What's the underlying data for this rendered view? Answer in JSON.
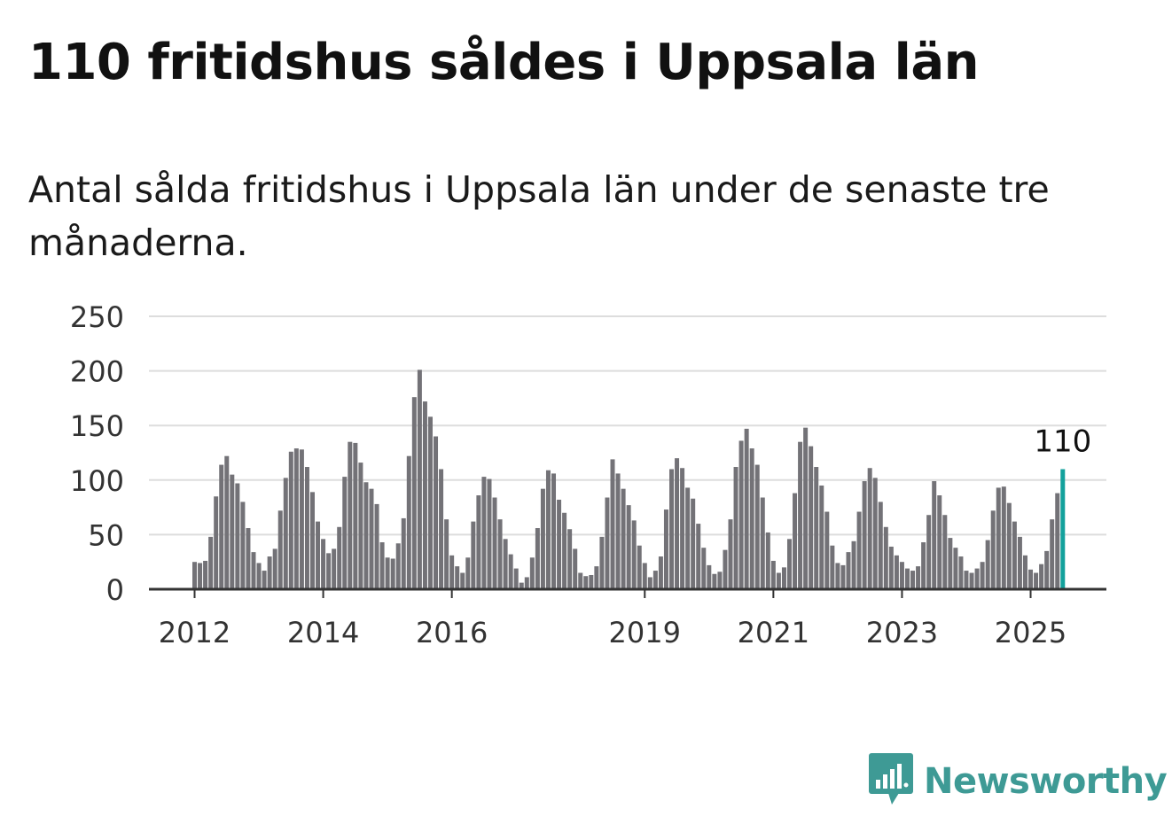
{
  "title": "110 fritidshus såldes i Uppsala län",
  "subtitle": "Antal sålda fritidshus i Uppsala län under de senaste tre månaderna.",
  "brand": {
    "name": "Newsworthy",
    "logo_icon": "bar-chart-speech-bubble-icon"
  },
  "colors": {
    "bar": "#737277",
    "highlight": "#13a19c",
    "grid": "#dddddd",
    "axis": "#333333",
    "brand": "#3e9a95"
  },
  "chart_data": {
    "type": "bar",
    "title": "110 fritidshus såldes i Uppsala län",
    "ylim": [
      0,
      250
    ],
    "yticks": [
      "0",
      "50",
      "100",
      "150",
      "200",
      "250"
    ],
    "xticks": [
      {
        "label": "2012",
        "index": 0
      },
      {
        "label": "2014",
        "index": 24
      },
      {
        "label": "2016",
        "index": 48
      },
      {
        "label": "2019",
        "index": 84
      },
      {
        "label": "2021",
        "index": 108
      },
      {
        "label": "2023",
        "index": 132
      },
      {
        "label": "2025",
        "index": 156
      }
    ],
    "highlight_label": "110",
    "grid": true,
    "values": [
      25,
      24,
      26,
      48,
      85,
      114,
      122,
      105,
      97,
      80,
      56,
      34,
      24,
      17,
      30,
      37,
      72,
      102,
      126,
      129,
      128,
      112,
      89,
      62,
      46,
      33,
      37,
      57,
      103,
      135,
      134,
      116,
      98,
      92,
      78,
      43,
      29,
      28,
      42,
      65,
      122,
      176,
      201,
      172,
      158,
      140,
      110,
      64,
      31,
      21,
      15,
      29,
      62,
      86,
      103,
      101,
      84,
      64,
      46,
      32,
      19,
      6,
      11,
      29,
      56,
      92,
      109,
      106,
      82,
      70,
      55,
      37,
      15,
      12,
      13,
      21,
      48,
      84,
      119,
      106,
      92,
      77,
      63,
      40,
      24,
      11,
      17,
      30,
      73,
      110,
      120,
      111,
      93,
      83,
      60,
      38,
      22,
      14,
      16,
      36,
      64,
      112,
      136,
      147,
      129,
      114,
      84,
      52,
      26,
      15,
      20,
      46,
      88,
      135,
      148,
      131,
      112,
      95,
      71,
      40,
      24,
      22,
      34,
      44,
      71,
      99,
      111,
      102,
      80,
      57,
      39,
      31,
      25,
      19,
      17,
      21,
      43,
      68,
      99,
      86,
      68,
      47,
      38,
      30,
      17,
      15,
      19,
      25,
      45,
      72,
      93,
      94,
      79,
      62,
      48,
      31,
      18,
      15,
      23,
      35,
      64,
      88,
      110
    ]
  }
}
